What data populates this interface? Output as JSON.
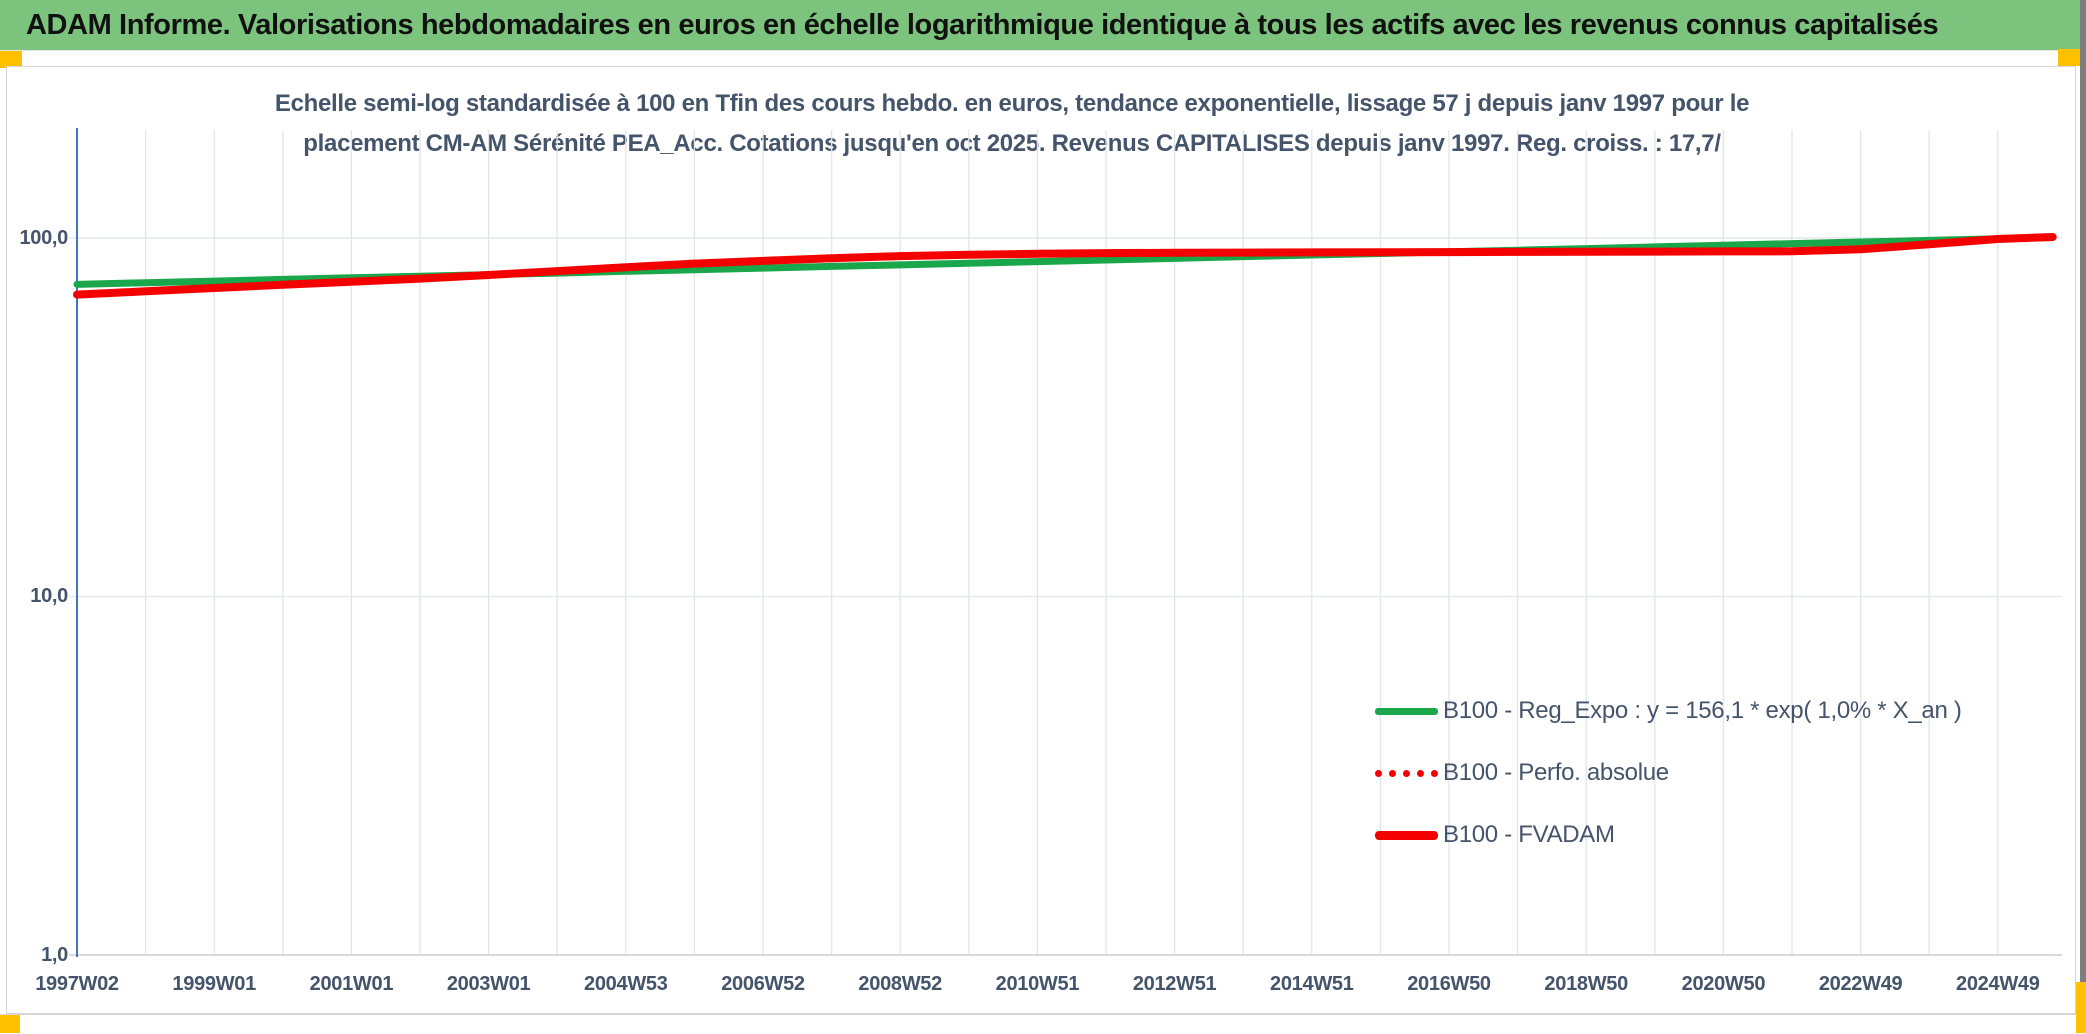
{
  "header": {
    "title": "ADAM Informe. Valorisations hebdomadaires en euros en échelle logarithmique identique à tous les actifs avec les revenus connus capitalisés"
  },
  "colors": {
    "banner_green": "#7CC47E",
    "accent_orange": "#FFC000",
    "text_navy": "#44546A",
    "series_green": "#1AA64B",
    "series_red": "#F40000",
    "y_axis_blue": "#4472C4",
    "gridline": "#E2E5EA"
  },
  "chart_data": {
    "type": "line",
    "title_line1": "Echelle semi-log standardisée à 100 en Tfin des cours hebdo. en euros, tendance exponentielle, lissage 57 j depuis janv 1997 pour le",
    "title_line2": "placement CM-AM Sérénité PEA_Acc. Cotations jusqu'en oct 2025. Revenus CAPITALISES depuis janv 1997. Reg. croiss. : 17,7/",
    "y_axis": {
      "scale": "log",
      "min": 1,
      "max": 200,
      "tick_values": [
        100,
        10,
        1
      ],
      "tick_labels": [
        "100,0",
        "10,0",
        "1,0"
      ]
    },
    "x_axis": {
      "start_year": 1997,
      "end_year": 2025.8,
      "gridline_every_years": 1,
      "tick_step_years": 2,
      "tick_labels": [
        "1997W02",
        "1999W01",
        "2001W01",
        "2003W01",
        "2004W53",
        "2006W52",
        "2008W52",
        "2010W51",
        "2012W51",
        "2014W51",
        "2016W50",
        "2018W50",
        "2020W50",
        "2022W49",
        "2024W49"
      ]
    },
    "legend_position": "right-lower",
    "grid": true,
    "x": [
      1997,
      1998,
      1999,
      2000,
      2001,
      2002,
      2003,
      2004,
      2005,
      2006,
      2007,
      2008,
      2009,
      2010,
      2011,
      2012,
      2013,
      2014,
      2015,
      2016,
      2017,
      2018,
      2019,
      2020,
      2021,
      2022,
      2023,
      2024,
      2025,
      2025.8
    ],
    "series": [
      {
        "name": "B100 - Reg_Expo : y = 156,1 * exp( 1,0% *  X_an )",
        "color": "#1AA64B",
        "style": "solid",
        "width": 7,
        "values": [
          74.2,
          75.0,
          75.8,
          76.6,
          77.4,
          78.2,
          79.0,
          79.8,
          80.7,
          81.5,
          82.4,
          83.3,
          84.1,
          85.0,
          85.9,
          86.8,
          87.7,
          88.7,
          89.6,
          90.5,
          91.5,
          92.4,
          93.4,
          94.4,
          95.4,
          96.4,
          97.4,
          98.4,
          99.5,
          100.3
        ]
      },
      {
        "name": "B100 - Perfo. absolue",
        "color": "#F40000",
        "style": "dotted",
        "width": 5,
        "values": [
          69.5,
          71.0,
          72.5,
          74.0,
          75.5,
          77.0,
          78.8,
          80.8,
          82.8,
          84.8,
          86.3,
          87.8,
          89.0,
          89.8,
          90.3,
          90.7,
          90.9,
          91.0,
          91.1,
          91.2,
          91.3,
          91.4,
          91.5,
          91.6,
          91.7,
          91.8,
          93.0,
          96.0,
          99.3,
          100.6
        ]
      },
      {
        "name": "B100 - FVADAM",
        "color": "#F40000",
        "style": "solid",
        "width": 8,
        "values": [
          69.5,
          71.0,
          72.5,
          74.0,
          75.5,
          77.0,
          78.8,
          80.8,
          82.8,
          84.8,
          86.3,
          87.8,
          89.0,
          89.8,
          90.3,
          90.7,
          90.9,
          91.0,
          91.1,
          91.2,
          91.3,
          91.4,
          91.5,
          91.6,
          91.7,
          91.8,
          93.0,
          96.0,
          99.3,
          100.6
        ]
      }
    ]
  }
}
